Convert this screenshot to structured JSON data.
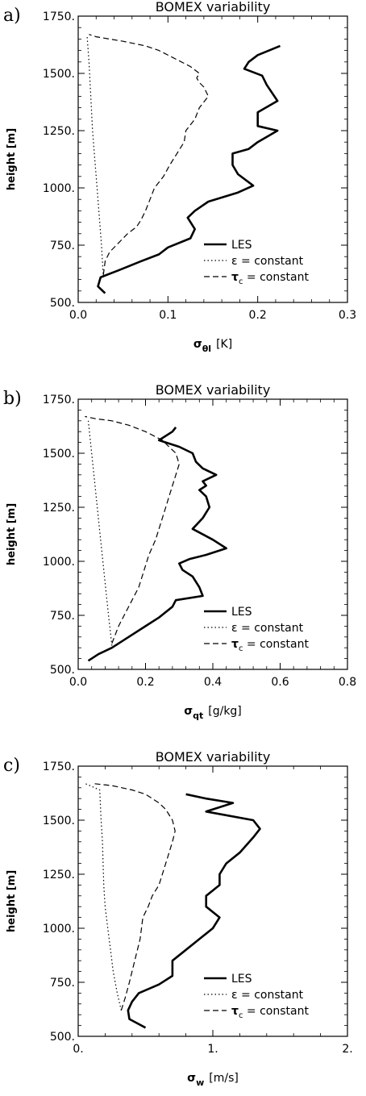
{
  "chart_data": [
    {
      "type": "line",
      "panel_label": "a)",
      "title": "BOMEX   variability",
      "ylabel": "height [m]",
      "xlabel_sym": "σ",
      "xlabel_sub": "θl",
      "xlabel_unit": "[K]",
      "xlim": [
        0,
        0.3
      ],
      "ylim": [
        500,
        1750
      ],
      "xticks": [
        0,
        0.1,
        0.2,
        0.3
      ],
      "xtick_labels": [
        "0.0",
        "0.1",
        "0.2",
        "0.3"
      ],
      "yticks": [
        500,
        750,
        1000,
        1250,
        1500,
        1750
      ],
      "ytick_labels": [
        "500.",
        "750.",
        "1000.",
        "1250.",
        "1500.",
        "1750."
      ],
      "series": [
        {
          "name": "LES",
          "style": "solid",
          "x": [
            0.03,
            0.022,
            0.025,
            0.045,
            0.07,
            0.09,
            0.1,
            0.125,
            0.13,
            0.122,
            0.13,
            0.145,
            0.178,
            0.195,
            0.178,
            0.172,
            0.172,
            0.19,
            0.2,
            0.222,
            0.2,
            0.2,
            0.222,
            0.21,
            0.205,
            0.185,
            0.19,
            0.2,
            0.225
          ],
          "y": [
            540,
            570,
            610,
            640,
            680,
            710,
            740,
            780,
            820,
            870,
            900,
            940,
            980,
            1010,
            1060,
            1100,
            1150,
            1170,
            1200,
            1250,
            1270,
            1330,
            1380,
            1450,
            1490,
            1520,
            1550,
            1580,
            1620
          ]
        },
        {
          "name": "ε = constant",
          "style": "dotted",
          "x": [
            0.028,
            0.026,
            0.024,
            0.022,
            0.02,
            0.018,
            0.016,
            0.014,
            0.012,
            0.01
          ],
          "y": [
            610,
            750,
            850,
            950,
            1050,
            1150,
            1250,
            1400,
            1550,
            1660
          ]
        },
        {
          "name": "τ_c = constant",
          "style": "dashed",
          "x": [
            0.028,
            0.03,
            0.035,
            0.045,
            0.055,
            0.065,
            0.07,
            0.075,
            0.08,
            0.085,
            0.095,
            0.102,
            0.11,
            0.118,
            0.12,
            0.13,
            0.135,
            0.145,
            0.14,
            0.135,
            0.132,
            0.135,
            0.125,
            0.11,
            0.09,
            0.075,
            0.05,
            0.035,
            0.02,
            0.012
          ],
          "y": [
            620,
            680,
            720,
            760,
            800,
            830,
            860,
            900,
            950,
            1000,
            1050,
            1100,
            1150,
            1200,
            1250,
            1300,
            1350,
            1400,
            1440,
            1460,
            1480,
            1500,
            1530,
            1560,
            1600,
            1620,
            1640,
            1650,
            1660,
            1670
          ]
        }
      ]
    },
    {
      "type": "line",
      "panel_label": "b)",
      "title": "BOMEX   variability",
      "ylabel": "height [m]",
      "xlabel_sym": "σ",
      "xlabel_sub": "qt",
      "xlabel_unit": "[g/kg]",
      "xlim": [
        0,
        0.8
      ],
      "ylim": [
        500,
        1750
      ],
      "xticks": [
        0,
        0.2,
        0.4,
        0.6,
        0.8
      ],
      "xtick_labels": [
        "0.0",
        "0.2",
        "0.4",
        "0.6",
        "0.8"
      ],
      "yticks": [
        500,
        750,
        1000,
        1250,
        1500,
        1750
      ],
      "ytick_labels": [
        "500.",
        "750.",
        "1000.",
        "1250.",
        "1500.",
        "1750."
      ],
      "series": [
        {
          "name": "LES",
          "style": "solid",
          "x": [
            0.03,
            0.06,
            0.1,
            0.15,
            0.2,
            0.24,
            0.28,
            0.29,
            0.37,
            0.36,
            0.34,
            0.31,
            0.3,
            0.33,
            0.38,
            0.44,
            0.4,
            0.34,
            0.37,
            0.39,
            0.38,
            0.36,
            0.38,
            0.37,
            0.41,
            0.37,
            0.35,
            0.34,
            0.3,
            0.26,
            0.24,
            0.28,
            0.29
          ],
          "y": [
            540,
            570,
            600,
            650,
            700,
            740,
            790,
            820,
            840,
            880,
            930,
            960,
            990,
            1010,
            1030,
            1060,
            1100,
            1150,
            1200,
            1250,
            1300,
            1330,
            1350,
            1370,
            1400,
            1430,
            1460,
            1500,
            1530,
            1550,
            1560,
            1600,
            1620
          ]
        },
        {
          "name": "ε = constant",
          "style": "dotted",
          "x": [
            0.1,
            0.09,
            0.08,
            0.07,
            0.06,
            0.05,
            0.04,
            0.03
          ],
          "y": [
            610,
            750,
            900,
            1050,
            1200,
            1350,
            1500,
            1650
          ]
        },
        {
          "name": "τ_c = constant",
          "style": "dashed",
          "x": [
            0.1,
            0.12,
            0.14,
            0.16,
            0.18,
            0.19,
            0.2,
            0.21,
            0.23,
            0.25,
            0.26,
            0.27,
            0.28,
            0.29,
            0.3,
            0.29,
            0.27,
            0.25,
            0.2,
            0.15,
            0.1,
            0.05,
            0.02
          ],
          "y": [
            620,
            700,
            760,
            820,
            880,
            930,
            980,
            1030,
            1100,
            1200,
            1250,
            1300,
            1350,
            1400,
            1450,
            1500,
            1530,
            1560,
            1600,
            1630,
            1650,
            1660,
            1670
          ]
        }
      ]
    },
    {
      "type": "line",
      "panel_label": "c)",
      "title": "BOMEX   variability",
      "ylabel": "height [m]",
      "xlabel_sym": "σ",
      "xlabel_sub": "w",
      "xlabel_unit": "[m/s]",
      "xlim": [
        0,
        2
      ],
      "ylim": [
        500,
        1750
      ],
      "xticks": [
        0,
        1,
        2
      ],
      "xtick_labels": [
        "0.",
        "1.",
        "2."
      ],
      "yticks": [
        500,
        750,
        1000,
        1250,
        1500,
        1750
      ],
      "ytick_labels": [
        "500.",
        "750.",
        "1000.",
        "1250.",
        "1500.",
        "1750."
      ],
      "series": [
        {
          "name": "LES",
          "style": "solid",
          "x": [
            0.5,
            0.38,
            0.37,
            0.4,
            0.45,
            0.6,
            0.7,
            0.7,
            0.8,
            0.9,
            1.0,
            1.05,
            0.95,
            0.95,
            1.05,
            1.05,
            1.1,
            1.2,
            1.3,
            1.35,
            1.3,
            0.95,
            1.15,
            0.95,
            0.8
          ],
          "y": [
            540,
            580,
            620,
            660,
            700,
            740,
            780,
            850,
            900,
            950,
            1000,
            1050,
            1100,
            1150,
            1200,
            1250,
            1300,
            1350,
            1420,
            1460,
            1500,
            1540,
            1580,
            1600,
            1620
          ]
        },
        {
          "name": "ε = constant",
          "style": "dotted",
          "x": [
            0.32,
            0.29,
            0.26,
            0.24,
            0.22,
            0.2,
            0.19,
            0.18,
            0.17,
            0.16,
            0.05
          ],
          "y": [
            620,
            700,
            800,
            900,
            1000,
            1100,
            1200,
            1400,
            1500,
            1640,
            1670
          ]
        },
        {
          "name": "τ_c = constant",
          "style": "dashed",
          "x": [
            0.32,
            0.35,
            0.38,
            0.42,
            0.46,
            0.48,
            0.52,
            0.55,
            0.6,
            0.65,
            0.7,
            0.72,
            0.7,
            0.65,
            0.6,
            0.5,
            0.4,
            0.25,
            0.1
          ],
          "y": [
            620,
            680,
            750,
            850,
            950,
            1050,
            1100,
            1150,
            1200,
            1300,
            1400,
            1450,
            1500,
            1550,
            1580,
            1620,
            1640,
            1660,
            1670
          ]
        }
      ]
    }
  ]
}
